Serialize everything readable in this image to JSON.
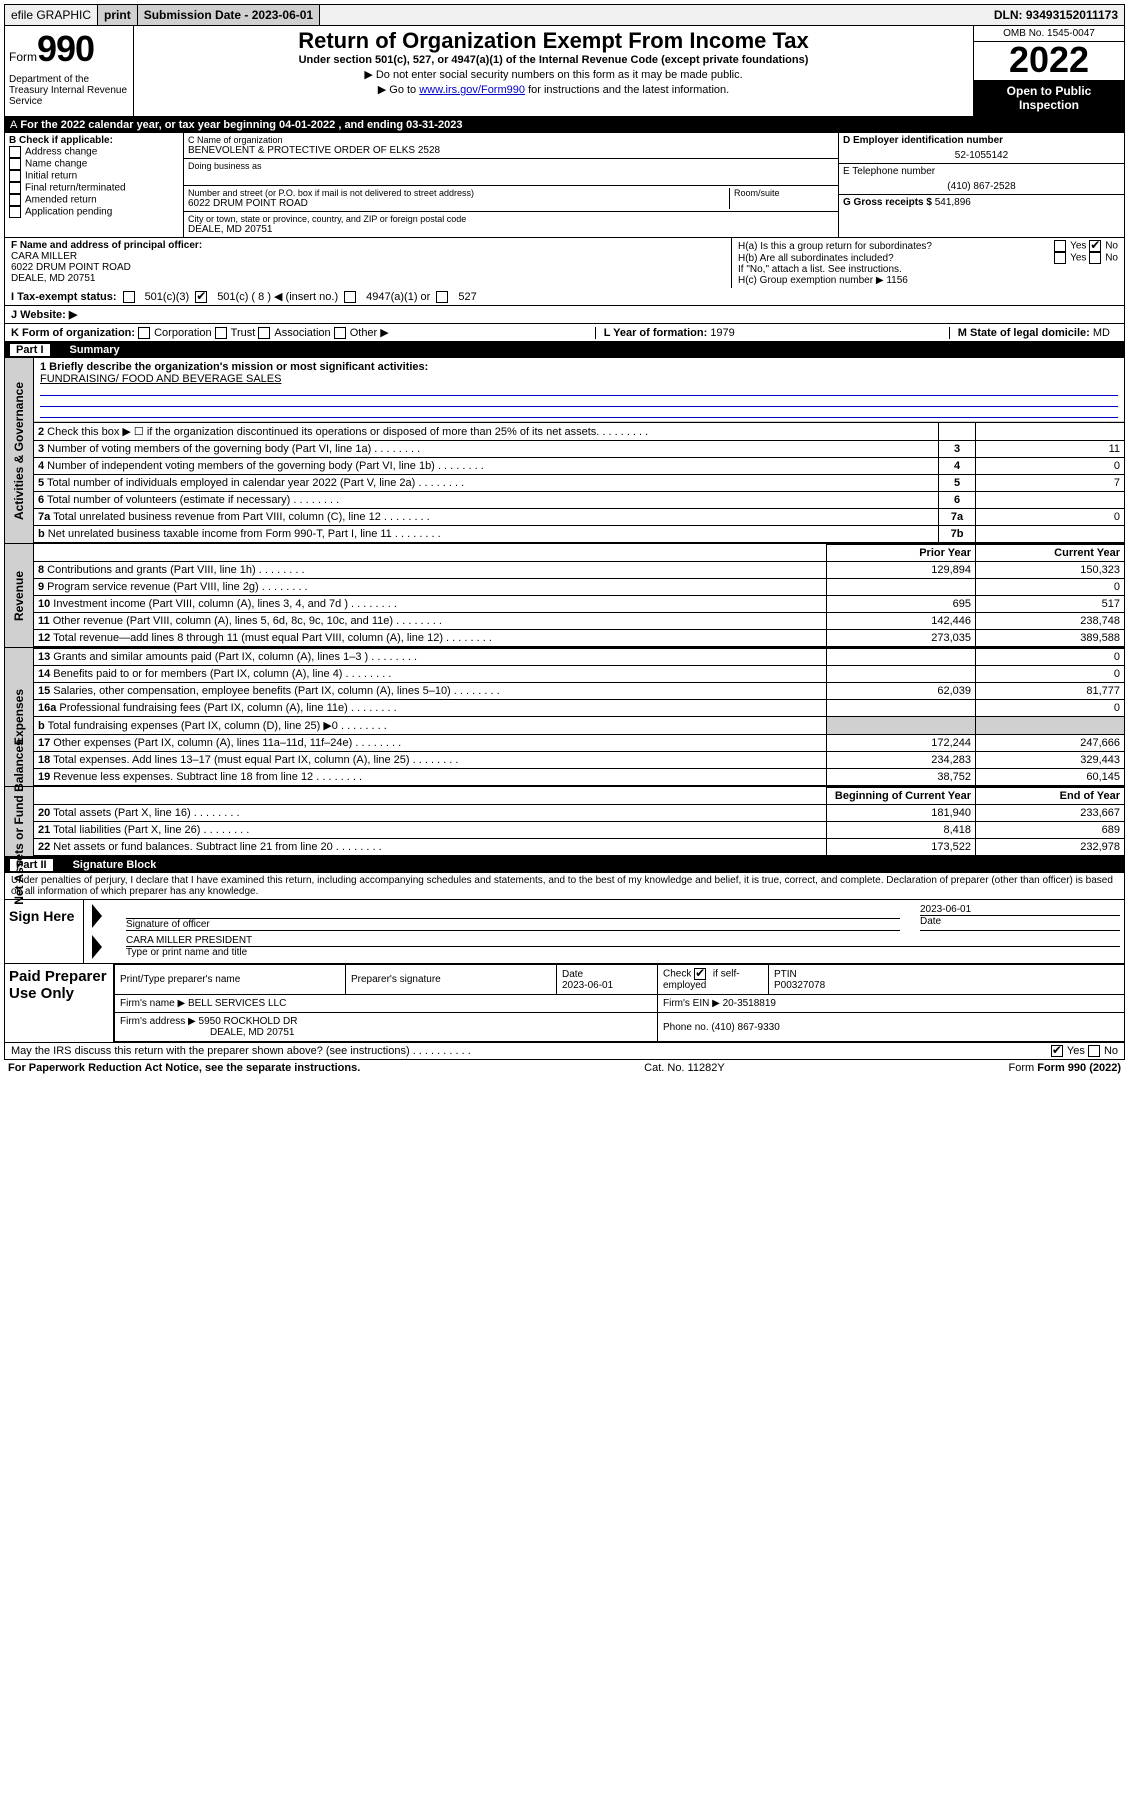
{
  "topbar": {
    "efile": "efile GRAPHIC",
    "print": "print",
    "submission_label": "Submission Date - 2023-06-01",
    "dln": "DLN: 93493152011173"
  },
  "header": {
    "form_word": "Form",
    "form_num": "990",
    "dept": "Department of the Treasury Internal Revenue Service",
    "title": "Return of Organization Exempt From Income Tax",
    "subtitle": "Under section 501(c), 527, or 4947(a)(1) of the Internal Revenue Code (except private foundations)",
    "note1": "▶ Do not enter social security numbers on this form as it may be made public.",
    "note2_pre": "▶ Go to ",
    "note2_link": "www.irs.gov/Form990",
    "note2_post": " for instructions and the latest information.",
    "omb": "OMB No. 1545-0047",
    "year": "2022",
    "open_public": "Open to Public Inspection"
  },
  "period": "For the 2022 calendar year, or tax year beginning 04-01-2022  , and ending 03-31-2023",
  "blockB": {
    "label": "B Check if applicable:",
    "items": [
      "Address change",
      "Name change",
      "Initial return",
      "Final return/terminated",
      "Amended return",
      "Application pending"
    ]
  },
  "blockC": {
    "name_label": "C Name of organization",
    "name": "BENEVOLENT & PROTECTIVE ORDER OF ELKS 2528",
    "dba_label": "Doing business as",
    "street_label": "Number and street (or P.O. box if mail is not delivered to street address)",
    "room_label": "Room/suite",
    "street": "6022 DRUM POINT ROAD",
    "city_label": "City or town, state or province, country, and ZIP or foreign postal code",
    "city": "DEALE, MD  20751"
  },
  "blockD": {
    "ein_label": "D Employer identification number",
    "ein": "52-1055142",
    "phone_label": "E Telephone number",
    "phone": "(410) 867-2528",
    "gross_label": "G Gross receipts $",
    "gross": "541,896"
  },
  "blockF": {
    "label": "F Name and address of principal officer:",
    "name": "CARA MILLER",
    "addr1": "6022 DRUM POINT ROAD",
    "addr2": "DEALE, MD  20751"
  },
  "blockH": {
    "ha": "H(a)  Is this a group return for subordinates?",
    "hb": "H(b)  Are all subordinates included?",
    "hb_note": "If \"No,\" attach a list. See instructions.",
    "hc": "H(c)  Group exemption number ▶",
    "hc_val": "1156",
    "yes": "Yes",
    "no": "No"
  },
  "rowI": {
    "label": "I  Tax-exempt status:",
    "o1": "501(c)(3)",
    "o2": "501(c) ( 8 ) ◀ (insert no.)",
    "o3": "4947(a)(1) or",
    "o4": "527"
  },
  "rowJ": {
    "label": "J  Website: ▶"
  },
  "rowK": {
    "left": "K Form of organization:",
    "opts": [
      "Corporation",
      "Trust",
      "Association",
      "Other ▶"
    ],
    "year_label": "L Year of formation:",
    "year": "1979",
    "state_label": "M State of legal domicile:",
    "state": "MD"
  },
  "partI": {
    "header": "Part I",
    "title": "Summary"
  },
  "summary1": {
    "line1": "1  Briefly describe the organization's mission or most significant activities:",
    "mission": "FUNDRAISING/ FOOD AND BEVERAGE SALES"
  },
  "govLines": [
    {
      "n": "2",
      "text": "Check this box ▶ ☐  if the organization discontinued its operations or disposed of more than 25% of its net assets.",
      "k": "",
      "v": ""
    },
    {
      "n": "3",
      "text": "Number of voting members of the governing body (Part VI, line 1a)",
      "k": "3",
      "v": "11"
    },
    {
      "n": "4",
      "text": "Number of independent voting members of the governing body (Part VI, line 1b)",
      "k": "4",
      "v": "0"
    },
    {
      "n": "5",
      "text": "Total number of individuals employed in calendar year 2022 (Part V, line 2a)",
      "k": "5",
      "v": "7"
    },
    {
      "n": "6",
      "text": "Total number of volunteers (estimate if necessary)",
      "k": "6",
      "v": ""
    },
    {
      "n": "7a",
      "text": "Total unrelated business revenue from Part VIII, column (C), line 12",
      "k": "7a",
      "v": "0"
    },
    {
      "n": "b",
      "text": "Net unrelated business taxable income from Form 990-T, Part I, line 11",
      "k": "7b",
      "v": ""
    }
  ],
  "yearHeaders": {
    "prior": "Prior Year",
    "current": "Current Year"
  },
  "revenueLines": [
    {
      "n": "8",
      "text": "Contributions and grants (Part VIII, line 1h)",
      "p": "129,894",
      "c": "150,323"
    },
    {
      "n": "9",
      "text": "Program service revenue (Part VIII, line 2g)",
      "p": "",
      "c": "0"
    },
    {
      "n": "10",
      "text": "Investment income (Part VIII, column (A), lines 3, 4, and 7d )",
      "p": "695",
      "c": "517"
    },
    {
      "n": "11",
      "text": "Other revenue (Part VIII, column (A), lines 5, 6d, 8c, 9c, 10c, and 11e)",
      "p": "142,446",
      "c": "238,748"
    },
    {
      "n": "12",
      "text": "Total revenue—add lines 8 through 11 (must equal Part VIII, column (A), line 12)",
      "p": "273,035",
      "c": "389,588"
    }
  ],
  "expenseLines": [
    {
      "n": "13",
      "text": "Grants and similar amounts paid (Part IX, column (A), lines 1–3 )",
      "p": "",
      "c": "0"
    },
    {
      "n": "14",
      "text": "Benefits paid to or for members (Part IX, column (A), line 4)",
      "p": "",
      "c": "0"
    },
    {
      "n": "15",
      "text": "Salaries, other compensation, employee benefits (Part IX, column (A), lines 5–10)",
      "p": "62,039",
      "c": "81,777"
    },
    {
      "n": "16a",
      "text": "Professional fundraising fees (Part IX, column (A), line 11e)",
      "p": "",
      "c": "0"
    },
    {
      "n": "b",
      "text": "Total fundraising expenses (Part IX, column (D), line 25) ▶0",
      "p": "",
      "c": ""
    },
    {
      "n": "17",
      "text": "Other expenses (Part IX, column (A), lines 11a–11d, 11f–24e)",
      "p": "172,244",
      "c": "247,666"
    },
    {
      "n": "18",
      "text": "Total expenses. Add lines 13–17 (must equal Part IX, column (A), line 25)",
      "p": "234,283",
      "c": "329,443"
    },
    {
      "n": "19",
      "text": "Revenue less expenses. Subtract line 18 from line 12",
      "p": "38,752",
      "c": "60,145"
    }
  ],
  "balHeaders": {
    "begin": "Beginning of Current Year",
    "end": "End of Year"
  },
  "balanceLines": [
    {
      "n": "20",
      "text": "Total assets (Part X, line 16)",
      "p": "181,940",
      "c": "233,667"
    },
    {
      "n": "21",
      "text": "Total liabilities (Part X, line 26)",
      "p": "8,418",
      "c": "689"
    },
    {
      "n": "22",
      "text": "Net assets or fund balances. Subtract line 21 from line 20",
      "p": "173,522",
      "c": "232,978"
    }
  ],
  "partII": {
    "header": "Part II",
    "title": "Signature Block"
  },
  "perjury": "Under penalties of perjury, I declare that I have examined this return, including accompanying schedules and statements, and to the best of my knowledge and belief, it is true, correct, and complete. Declaration of preparer (other than officer) is based on all information of which preparer has any knowledge.",
  "sign": {
    "here": "Sign Here",
    "sig_officer": "Signature of officer",
    "date_label": "Date",
    "date": "2023-06-01",
    "name_title": "CARA MILLER  PRESIDENT",
    "name_title_label": "Type or print name and title"
  },
  "preparer": {
    "here": "Paid Preparer Use Only",
    "col1": "Print/Type preparer's name",
    "col2": "Preparer's signature",
    "col3": "Date",
    "date": "2023-06-01",
    "col4_label": "Check",
    "col4_sub": "if self-employed",
    "ptin_label": "PTIN",
    "ptin": "P00327078",
    "firm_name_label": "Firm's name   ▶",
    "firm_name": "BELL SERVICES LLC",
    "firm_ein_label": "Firm's EIN ▶",
    "firm_ein": "20-3518819",
    "firm_addr_label": "Firm's address ▶",
    "firm_addr1": "5950 ROCKHOLD DR",
    "firm_addr2": "DEALE, MD  20751",
    "phone_label": "Phone no.",
    "phone": "(410) 867-9330"
  },
  "discuss": "May the IRS discuss this return with the preparer shown above? (see instructions)",
  "footer": {
    "left": "For Paperwork Reduction Act Notice, see the separate instructions.",
    "mid": "Cat. No. 11282Y",
    "right": "Form 990 (2022)"
  }
}
